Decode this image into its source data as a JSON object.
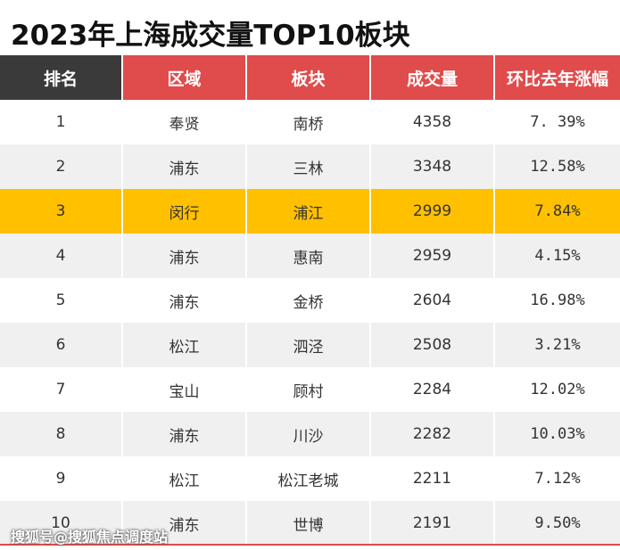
{
  "title": "2023年上海成交量TOP10板块",
  "headers": [
    "排名",
    "区域",
    "板块",
    "成交量",
    "环比去年涨幅"
  ],
  "rows": [
    {
      "rank": "1",
      "district": "奉贤",
      "block": "南桥",
      "volume": "4358",
      "growth": "7. 39%"
    },
    {
      "rank": "2",
      "district": "浦东",
      "block": "三林",
      "volume": "3348",
      "growth": "12.58%"
    },
    {
      "rank": "3",
      "district": "闵行",
      "block": "浦江",
      "volume": "2999",
      "growth": "7.84%"
    },
    {
      "rank": "4",
      "district": "浦东",
      "block": "惠南",
      "volume": "2959",
      "growth": "4.15%"
    },
    {
      "rank": "5",
      "district": "浦东",
      "block": "金桥",
      "volume": "2604",
      "growth": "16.98%"
    },
    {
      "rank": "6",
      "district": "松江",
      "block": "泗泾",
      "volume": "2508",
      "growth": "3.21%"
    },
    {
      "rank": "7",
      "district": "宝山",
      "block": "顾村",
      "volume": "2284",
      "growth": "12.02%"
    },
    {
      "rank": "8",
      "district": "浦东",
      "block": "川沙",
      "volume": "2282",
      "growth": "10.03%"
    },
    {
      "rank": "9",
      "district": "松江",
      "block": "松江老城",
      "volume": "2211",
      "growth": "7.12%"
    },
    {
      "rank": "10",
      "district": "浦东",
      "block": "世博",
      "volume": "2191",
      "growth": "9.50%"
    }
  ],
  "highlight_row": 3,
  "watermark": "搜狐号@搜狐焦点调度站",
  "colors": {
    "header_dark": "#3a3a3a",
    "header_red": "#e04b4b",
    "highlight": "#ffc000",
    "stripe": "#f0f0f0"
  }
}
